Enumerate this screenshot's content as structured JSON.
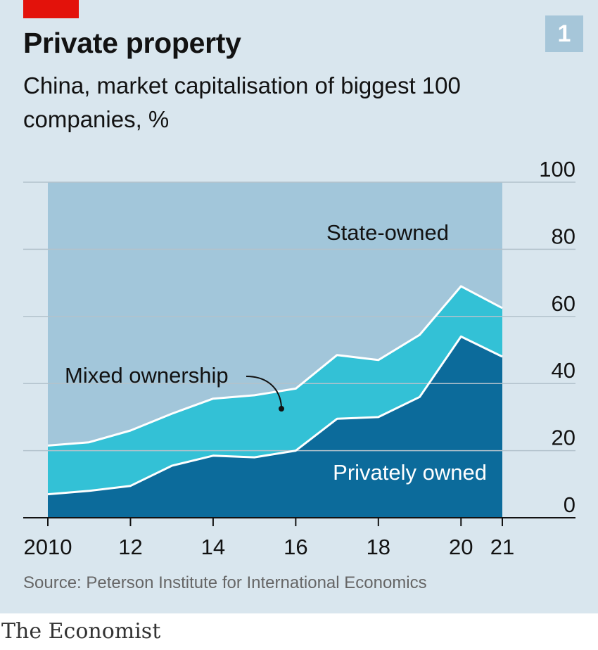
{
  "header": {
    "title": "Private property",
    "subtitle": "China, market capitalisation of biggest 100 companies, %",
    "chart_number": "1"
  },
  "footer": {
    "source": "Source: Peterson Institute for International Economics",
    "brand": "The Economist"
  },
  "colors": {
    "state_owned": "#a2c6da",
    "mixed_ownership": "#33c1d6",
    "privately_owned": "#0c6b9b",
    "accent_red": "#e3120b",
    "background": "#d9e6ee"
  },
  "chart_data": {
    "type": "area",
    "stacked": true,
    "title": "Private property",
    "subtitle": "China, market capitalisation of biggest 100 companies, %",
    "x": [
      2010,
      2011,
      2012,
      2013,
      2014,
      2015,
      2016,
      2017,
      2018,
      2019,
      2020,
      2021
    ],
    "x_tick_values": [
      2010,
      2012,
      2014,
      2016,
      2018,
      2020,
      2021
    ],
    "x_tick_labels": [
      "2010",
      "12",
      "14",
      "16",
      "18",
      "20",
      "21"
    ],
    "ylim": [
      0,
      100
    ],
    "y_ticks": [
      0,
      20,
      40,
      60,
      80,
      100
    ],
    "y_tick_labels": [
      "0",
      "20",
      "40",
      "60",
      "80",
      "100"
    ],
    "y_axis_side": "right",
    "grid": true,
    "series": [
      {
        "name": "Privately owned",
        "values": [
          7,
          8,
          9.5,
          15.5,
          18.5,
          18,
          20,
          29.5,
          30,
          36,
          54,
          48
        ]
      },
      {
        "name": "Mixed ownership",
        "values": [
          14.5,
          14.5,
          16.5,
          15.5,
          17,
          18.5,
          18.5,
          19,
          17,
          18.5,
          15,
          14.5
        ]
      },
      {
        "name": "State-owned",
        "values": [
          78.5,
          77.5,
          74,
          69,
          64.5,
          63.5,
          61.5,
          51.5,
          53,
          45.5,
          31,
          37.5
        ]
      }
    ],
    "annotations": {
      "state_owned": "State-owned",
      "mixed_ownership": "Mixed ownership",
      "privately_owned": "Privately owned"
    }
  }
}
